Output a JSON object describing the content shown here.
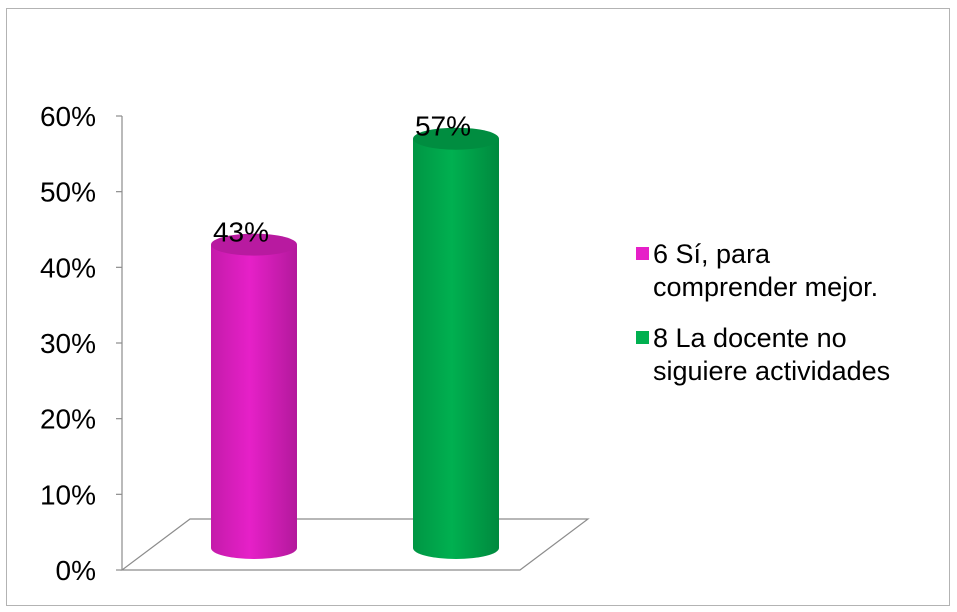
{
  "chart_data": {
    "type": "bar",
    "style": "3d-cylinder",
    "categories": [
      "6 Sí, para comprender mejor.",
      "8 La docente no siguiere actividades"
    ],
    "series": [
      {
        "name": "6 Sí, para comprender mejor.",
        "value": 0.43,
        "label": "43%",
        "color": "#e620c8"
      },
      {
        "name": "8 La docente no siguiere actividades",
        "value": 0.57,
        "label": "57%",
        "color": "#00b050"
      }
    ],
    "yticks": [
      "0%",
      "10%",
      "20%",
      "30%",
      "40%",
      "50%",
      "60%"
    ],
    "ylim": [
      0,
      0.6
    ],
    "grid": false,
    "legend_position": "right",
    "legend": [
      {
        "line1": "6 Sí, para",
        "line2": "comprender mejor.",
        "color": "#e620c8"
      },
      {
        "line1": "8 La docente no",
        "line2": "siguiere actividades",
        "color": "#00b050"
      }
    ]
  }
}
